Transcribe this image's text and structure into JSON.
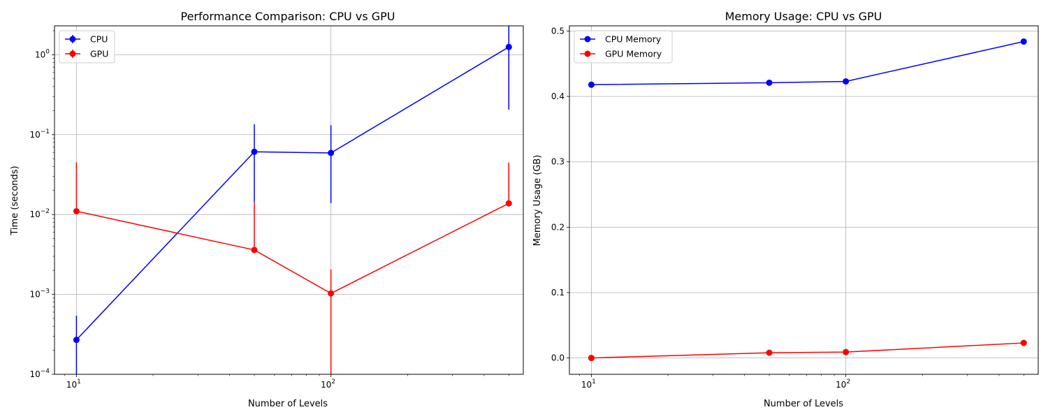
{
  "chart_data": [
    {
      "type": "line",
      "title": "Performance Comparison: CPU vs GPU",
      "xlabel": "Number of Levels",
      "ylabel": "Time (seconds)",
      "xscale": "log",
      "yscale": "log",
      "xlim": [
        8.2,
        570
      ],
      "ylim": [
        0.0001,
        2.3
      ],
      "x_ticks": [
        10,
        100
      ],
      "x_tick_labels": [
        {
          "base": "10",
          "exp": "1"
        },
        {
          "base": "10",
          "exp": "2"
        }
      ],
      "y_ticks": [
        0.0001,
        0.001,
        0.01,
        0.1,
        1
      ],
      "y_tick_labels": [
        {
          "base": "10",
          "exp": "−4"
        },
        {
          "base": "10",
          "exp": "−3"
        },
        {
          "base": "10",
          "exp": "−2"
        },
        {
          "base": "10",
          "exp": "−1"
        },
        {
          "base": "10",
          "exp": "0"
        }
      ],
      "grid": true,
      "legend": "upper left",
      "x": [
        10,
        50,
        100,
        500
      ],
      "series": [
        {
          "name": "CPU",
          "color": "#0000ff",
          "values": [
            0.00027,
            0.061,
            0.059,
            1.25
          ],
          "err_low": [
            0.0002707,
            0.0468,
            0.0451,
            1.045
          ],
          "err_high": [
            0.0002707,
            0.074,
            0.072,
            1.43
          ]
        },
        {
          "name": "GPU",
          "color": "#ff0000",
          "values": [
            0.011,
            0.0036,
            0.00103,
            0.0138
          ],
          "err_low": [
            1e-05,
            1e-05,
            0.00103,
            1e-05
          ],
          "err_high": [
            0.034,
            0.0105,
            0.00103,
            0.031
          ]
        }
      ]
    },
    {
      "type": "line",
      "title": "Memory Usage: CPU vs GPU",
      "xlabel": "Number of Levels",
      "ylabel": "Memory Usage (GB)",
      "xscale": "log",
      "yscale": "linear",
      "xlim": [
        8.2,
        570
      ],
      "ylim": [
        -0.025,
        0.508
      ],
      "x_ticks": [
        10,
        100
      ],
      "x_tick_labels": [
        {
          "base": "10",
          "exp": "1"
        },
        {
          "base": "10",
          "exp": "2"
        }
      ],
      "y_ticks": [
        0.0,
        0.1,
        0.2,
        0.3,
        0.4,
        0.5
      ],
      "y_tick_labels": [
        "0.0",
        "0.1",
        "0.2",
        "0.3",
        "0.4",
        "0.5"
      ],
      "grid": true,
      "legend": "upper left",
      "x": [
        10,
        50,
        100,
        500
      ],
      "series": [
        {
          "name": "CPU Memory",
          "color": "#0000ff",
          "values": [
            0.418,
            0.421,
            0.423,
            0.484
          ]
        },
        {
          "name": "GPU Memory",
          "color": "#ff0000",
          "values": [
            0.0,
            0.008,
            0.009,
            0.023
          ]
        }
      ]
    }
  ]
}
